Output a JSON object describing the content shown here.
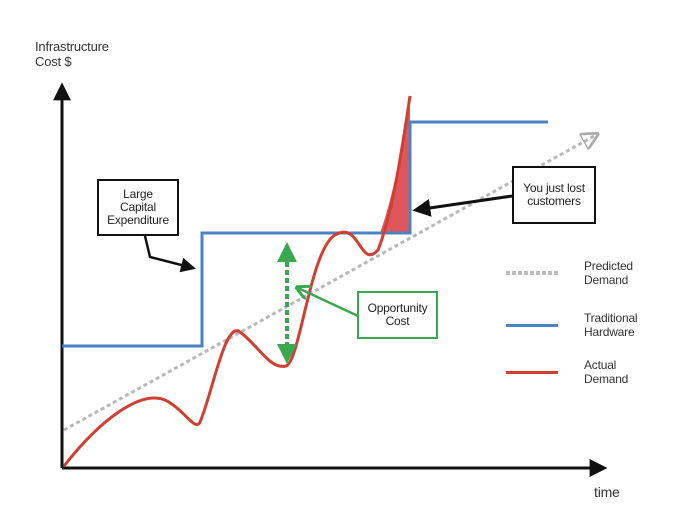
{
  "axes": {
    "y_label": "Infrastructure\nCost $",
    "x_label": "time"
  },
  "callouts": {
    "capex": "Large\nCapital\nExpenditure",
    "lost_customers": "You just lost\ncustomers",
    "opportunity_cost": "Opportunity\nCost"
  },
  "legend": {
    "predicted": "Predicted\nDemand",
    "traditional": "Traditional\nHardware",
    "actual": "Actual\nDemand"
  },
  "colors": {
    "traditional_hardware": "#4a83c3",
    "actual_demand": "#cf3f34",
    "predicted_demand": "#bdbdbd",
    "opportunity_cost": "#3aa850",
    "lost_customers_fill": "#d9454a",
    "axis": "#111111"
  }
}
